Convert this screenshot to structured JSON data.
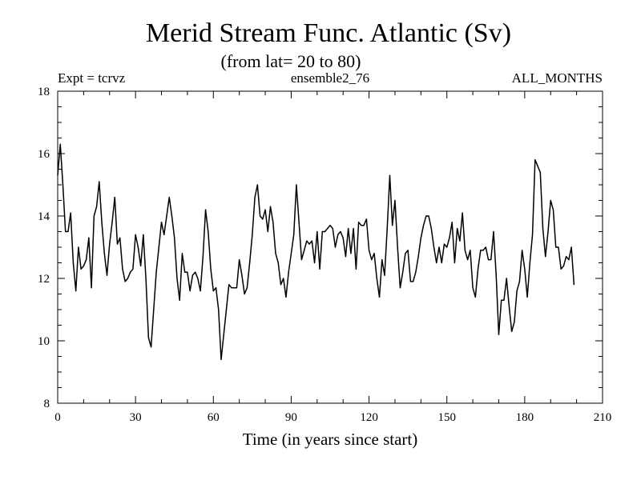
{
  "chart_data": {
    "type": "line",
    "title": "Merid Stream Func. Atlantic (Sv)",
    "subtitle": "(from lat= 20 to 80)",
    "expt_label": "Expt = tcrvz",
    "ensemble_label": "ensemble2_76",
    "months_label": "ALL_MONTHS",
    "xlabel": "Time (in years since start)",
    "ylabel": "",
    "xlim": [
      0,
      210
    ],
    "ylim": [
      8,
      18
    ],
    "xticks": [
      0,
      30,
      60,
      90,
      120,
      150,
      180,
      210
    ],
    "yticks": [
      8,
      10,
      12,
      14,
      16,
      18
    ],
    "grid": false,
    "series": [
      {
        "name": "ensemble2_76",
        "color": "#000000",
        "x": [
          0,
          1,
          2,
          3,
          4,
          5,
          6,
          7,
          8,
          9,
          10,
          11,
          12,
          13,
          14,
          15,
          16,
          17,
          18,
          19,
          20,
          21,
          22,
          23,
          24,
          25,
          26,
          27,
          28,
          29,
          30,
          31,
          32,
          33,
          34,
          35,
          36,
          37,
          38,
          39,
          40,
          41,
          42,
          43,
          44,
          45,
          46,
          47,
          48,
          49,
          50,
          51,
          52,
          53,
          54,
          55,
          56,
          57,
          58,
          59,
          60,
          61,
          62,
          63,
          64,
          65,
          66,
          67,
          68,
          69,
          70,
          71,
          72,
          73,
          74,
          75,
          76,
          77,
          78,
          79,
          80,
          81,
          82,
          83,
          84,
          85,
          86,
          87,
          88,
          89,
          90,
          91,
          92,
          93,
          94,
          95,
          96,
          97,
          98,
          99,
          100,
          101,
          102,
          103,
          104,
          105,
          106,
          107,
          108,
          109,
          110,
          111,
          112,
          113,
          114,
          115,
          116,
          117,
          118,
          119,
          120,
          121,
          122,
          123,
          124,
          125,
          126,
          127,
          128,
          129,
          130,
          131,
          132,
          133,
          134,
          135,
          136,
          137,
          138,
          139,
          140,
          141,
          142,
          143,
          144,
          145,
          146,
          147,
          148,
          149,
          150,
          151,
          152,
          153,
          154,
          155,
          156,
          157,
          158,
          159,
          160,
          161,
          162,
          163,
          164,
          165,
          166,
          167,
          168,
          169,
          170,
          171,
          172,
          173,
          174,
          175,
          176,
          177,
          178,
          179,
          180,
          181,
          182,
          183,
          184,
          185,
          186,
          187,
          188,
          189,
          190,
          191,
          192,
          193,
          194,
          195,
          196,
          197,
          198,
          199
        ],
        "values": [
          15.3,
          16.3,
          15.0,
          13.5,
          13.5,
          14.1,
          12.5,
          11.6,
          13.0,
          12.3,
          12.4,
          12.6,
          13.3,
          11.7,
          14.0,
          14.3,
          15.1,
          13.8,
          12.8,
          12.1,
          13.1,
          13.8,
          14.6,
          13.1,
          13.3,
          12.3,
          11.9,
          12.0,
          12.2,
          12.3,
          13.4,
          13.0,
          12.4,
          13.4,
          12.0,
          10.1,
          9.8,
          11.0,
          12.2,
          13.0,
          13.8,
          13.4,
          14.0,
          14.6,
          14.0,
          13.3,
          12.0,
          11.3,
          12.8,
          12.2,
          12.2,
          11.6,
          12.1,
          12.2,
          12.0,
          11.6,
          12.7,
          14.2,
          13.5,
          12.3,
          11.6,
          11.7,
          11.0,
          9.4,
          10.2,
          11.0,
          11.8,
          11.7,
          11.7,
          11.7,
          12.6,
          12.1,
          11.5,
          11.7,
          12.5,
          13.4,
          14.6,
          15.0,
          14.0,
          13.9,
          14.2,
          13.5,
          14.3,
          13.8,
          12.8,
          12.5,
          11.8,
          12.0,
          11.4,
          12.2,
          12.8,
          13.4,
          15.0,
          13.8,
          12.6,
          12.9,
          13.2,
          13.1,
          13.2,
          12.5,
          13.5,
          12.3,
          13.5,
          13.5,
          13.6,
          13.7,
          13.6,
          13.0,
          13.4,
          13.5,
          13.3,
          12.7,
          13.6,
          12.8,
          13.6,
          12.3,
          13.8,
          13.7,
          13.7,
          13.9,
          12.9,
          12.6,
          12.8,
          12.0,
          11.4,
          12.6,
          12.1,
          13.6,
          15.3,
          13.7,
          14.5,
          13.0,
          11.7,
          12.2,
          12.8,
          12.9,
          11.9,
          11.9,
          12.2,
          12.7,
          13.3,
          13.7,
          14.0,
          14.0,
          13.6,
          13.0,
          12.5,
          13.0,
          12.5,
          13.1,
          13.0,
          13.3,
          13.8,
          12.5,
          13.6,
          13.2,
          14.1,
          12.9,
          12.6,
          12.9,
          11.7,
          11.4,
          12.3,
          12.9,
          12.9,
          13.0,
          12.6,
          12.6,
          13.5,
          12.1,
          10.2,
          11.3,
          11.3,
          12.0,
          11.1,
          10.3,
          10.6,
          11.6,
          11.9,
          12.9,
          12.3,
          11.4,
          12.5,
          13.4,
          15.8,
          15.6,
          15.4,
          13.6,
          12.7,
          13.5,
          14.5,
          14.2,
          13.0,
          13.0,
          12.3,
          12.4,
          12.7,
          12.6,
          13.0,
          11.8
        ]
      }
    ]
  }
}
